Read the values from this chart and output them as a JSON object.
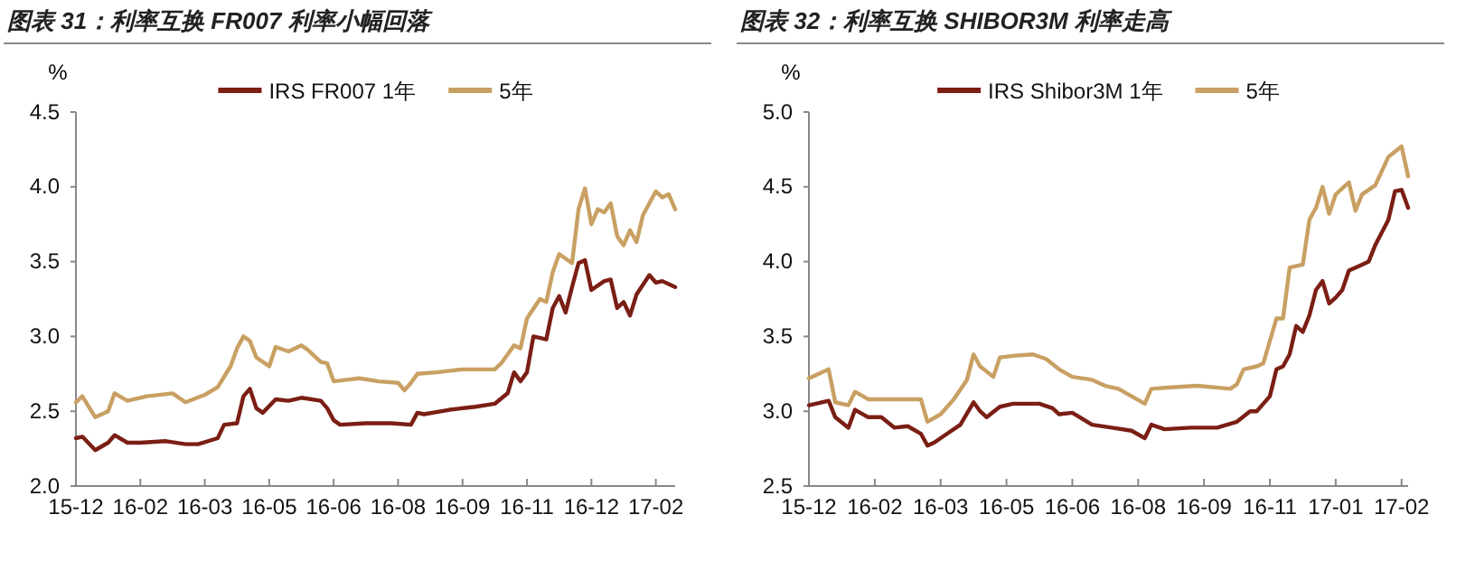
{
  "chart_data": [
    {
      "type": "line",
      "title": "图表 31：利率互换 FR007 利率小幅回落",
      "ylabel": "%",
      "legend": "top",
      "grid": false,
      "marker": "none",
      "line_style": "solid",
      "ylim": [
        2.0,
        4.5
      ],
      "yticks": [
        {
          "value": 2.0,
          "label": "2.0"
        },
        {
          "value": 2.5,
          "label": "2.5"
        },
        {
          "value": 3.0,
          "label": "3.0"
        },
        {
          "value": 3.5,
          "label": "3.5"
        },
        {
          "value": 4.0,
          "label": "4.0"
        },
        {
          "value": 4.5,
          "label": "4.5"
        }
      ],
      "categories": [
        "15-12",
        null,
        null,
        null,
        null,
        null,
        null,
        null,
        null,
        null,
        "16-02",
        null,
        null,
        null,
        null,
        null,
        null,
        null,
        null,
        null,
        "16-03",
        null,
        null,
        null,
        null,
        null,
        null,
        null,
        null,
        null,
        "16-05",
        null,
        null,
        null,
        null,
        null,
        null,
        null,
        null,
        null,
        "16-06",
        null,
        null,
        null,
        null,
        null,
        null,
        null,
        null,
        null,
        "16-08",
        null,
        null,
        null,
        null,
        null,
        null,
        null,
        null,
        null,
        "16-09",
        null,
        null,
        null,
        null,
        null,
        null,
        null,
        null,
        null,
        "16-11",
        null,
        null,
        null,
        null,
        null,
        null,
        null,
        null,
        null,
        "16-12",
        null,
        null,
        null,
        null,
        null,
        null,
        null,
        null,
        null,
        "17-02",
        null,
        null,
        null
      ],
      "series": [
        {
          "name": "IRS FR007 1年",
          "color": "#7b1e14",
          "values": [
            2.32,
            2.33,
            null,
            2.24,
            null,
            2.29,
            2.34,
            null,
            2.29,
            null,
            2.29,
            null,
            null,
            null,
            2.3,
            null,
            null,
            2.28,
            null,
            2.28,
            null,
            null,
            2.32,
            2.41,
            null,
            2.42,
            2.6,
            2.65,
            2.52,
            2.49,
            null,
            2.58,
            null,
            2.57,
            null,
            2.59,
            null,
            null,
            2.57,
            2.52,
            2.44,
            2.41,
            null,
            null,
            null,
            2.42,
            null,
            null,
            null,
            2.42,
            null,
            null,
            2.41,
            2.49,
            2.48,
            null,
            null,
            null,
            2.51,
            null,
            null,
            null,
            2.53,
            null,
            null,
            2.55,
            null,
            2.62,
            2.76,
            2.7,
            2.76,
            3.0,
            null,
            2.98,
            3.19,
            3.27,
            3.16,
            3.33,
            3.49,
            3.51,
            3.31,
            null,
            3.37,
            3.38,
            3.19,
            3.23,
            3.14,
            3.28,
            null,
            3.41,
            3.36,
            3.37,
            null,
            3.33
          ]
        },
        {
          "name": "5年",
          "color": "#c9a063",
          "values": [
            2.56,
            2.6,
            null,
            2.46,
            null,
            2.5,
            2.62,
            null,
            2.57,
            null,
            null,
            2.6,
            null,
            null,
            null,
            2.62,
            null,
            2.56,
            null,
            null,
            2.61,
            null,
            2.66,
            null,
            2.8,
            2.92,
            3.0,
            2.97,
            2.86,
            null,
            2.8,
            2.93,
            null,
            2.9,
            null,
            2.94,
            2.91,
            null,
            2.83,
            2.82,
            2.7,
            null,
            2.71,
            null,
            2.72,
            null,
            null,
            2.7,
            null,
            null,
            2.69,
            2.64,
            2.69,
            2.75,
            null,
            null,
            2.76,
            null,
            null,
            null,
            2.78,
            null,
            null,
            null,
            null,
            2.78,
            2.82,
            null,
            2.94,
            2.92,
            3.12,
            null,
            3.25,
            3.23,
            3.43,
            3.55,
            null,
            3.49,
            3.85,
            3.99,
            3.75,
            3.85,
            3.83,
            3.89,
            3.67,
            3.61,
            3.71,
            3.63,
            3.81,
            null,
            3.97,
            3.93,
            3.95,
            3.85
          ]
        }
      ]
    },
    {
      "type": "line",
      "title": "图表 32：利率互换 SHIBOR3M 利率走高",
      "ylabel": "%",
      "legend": "top",
      "grid": false,
      "marker": "none",
      "line_style": "solid",
      "ylim": [
        2.5,
        5.0
      ],
      "yticks": [
        {
          "value": 2.5,
          "label": "2.5"
        },
        {
          "value": 3.0,
          "label": "3.0"
        },
        {
          "value": 3.5,
          "label": "3.5"
        },
        {
          "value": 4.0,
          "label": "4.0"
        },
        {
          "value": 4.5,
          "label": "4.5"
        },
        {
          "value": 5.0,
          "label": "5.0"
        }
      ],
      "categories": [
        "15-12",
        null,
        null,
        null,
        null,
        null,
        null,
        null,
        null,
        null,
        "16-02",
        null,
        null,
        null,
        null,
        null,
        null,
        null,
        null,
        null,
        "16-03",
        null,
        null,
        null,
        null,
        null,
        null,
        null,
        null,
        null,
        "16-05",
        null,
        null,
        null,
        null,
        null,
        null,
        null,
        null,
        null,
        "16-06",
        null,
        null,
        null,
        null,
        null,
        null,
        null,
        null,
        null,
        "16-08",
        null,
        null,
        null,
        null,
        null,
        null,
        null,
        null,
        null,
        "16-09",
        null,
        null,
        null,
        null,
        null,
        null,
        null,
        null,
        null,
        "16-11",
        null,
        null,
        null,
        null,
        null,
        null,
        null,
        null,
        null,
        "17-01",
        null,
        null,
        null,
        null,
        null,
        null,
        null,
        null,
        null,
        "17-02",
        null
      ],
      "series": [
        {
          "name": "IRS Shibor3M 1年",
          "color": "#7b1e14",
          "values": [
            3.04,
            null,
            null,
            3.07,
            2.96,
            null,
            2.89,
            3.01,
            null,
            2.96,
            null,
            2.96,
            null,
            2.89,
            null,
            2.9,
            null,
            2.85,
            2.77,
            2.79,
            null,
            2.85,
            null,
            2.91,
            null,
            3.06,
            3.0,
            2.96,
            null,
            3.03,
            null,
            3.05,
            null,
            null,
            null,
            3.05,
            null,
            3.02,
            2.98,
            null,
            2.99,
            null,
            null,
            2.91,
            null,
            null,
            2.89,
            null,
            null,
            2.87,
            null,
            2.82,
            2.91,
            null,
            2.88,
            null,
            null,
            null,
            2.89,
            null,
            null,
            null,
            2.89,
            null,
            null,
            2.93,
            null,
            3.0,
            3.0,
            null,
            3.1,
            3.28,
            3.3,
            3.38,
            3.57,
            3.53,
            3.64,
            3.81,
            3.87,
            3.72,
            3.76,
            3.81,
            3.94,
            null,
            3.98,
            4.0,
            4.11,
            null,
            4.28,
            4.47,
            4.48,
            4.36
          ]
        },
        {
          "name": "5年",
          "color": "#c9a063",
          "values": [
            3.22,
            null,
            null,
            3.28,
            3.06,
            null,
            3.04,
            3.13,
            null,
            3.08,
            null,
            null,
            3.08,
            null,
            null,
            null,
            null,
            3.08,
            2.93,
            null,
            2.98,
            null,
            3.08,
            null,
            3.21,
            3.38,
            3.3,
            null,
            3.23,
            3.36,
            null,
            3.37,
            null,
            null,
            3.38,
            null,
            3.35,
            null,
            3.28,
            null,
            3.23,
            null,
            null,
            3.21,
            null,
            3.17,
            null,
            3.15,
            null,
            3.1,
            null,
            3.05,
            3.15,
            null,
            null,
            3.16,
            null,
            null,
            null,
            3.17,
            null,
            null,
            null,
            null,
            3.15,
            3.18,
            3.28,
            null,
            3.3,
            3.32,
            3.47,
            3.62,
            3.62,
            3.96,
            null,
            3.98,
            4.28,
            4.36,
            4.5,
            4.32,
            4.45,
            null,
            4.53,
            4.34,
            4.45,
            null,
            4.51,
            null,
            4.7,
            null,
            4.77,
            4.57
          ]
        }
      ]
    }
  ]
}
